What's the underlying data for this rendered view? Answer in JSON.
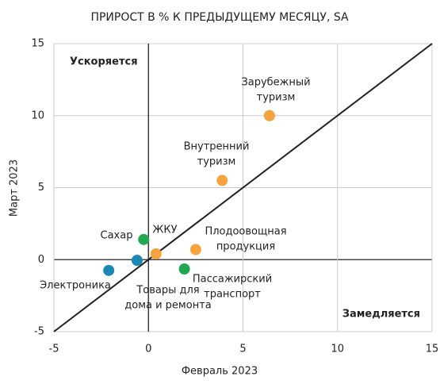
{
  "chart_data": {
    "type": "scatter",
    "title": "ПРИРОСТ В % К ПРЕДЫДУЩЕМУ МЕСЯЦУ, SA",
    "x_label": "Февраль 2023",
    "y_label": "Март 2023",
    "xlim": [
      -5,
      15
    ],
    "ylim": [
      -5,
      15
    ],
    "xticks": [
      -5,
      0,
      5,
      10,
      15
    ],
    "yticks": [
      -5,
      0,
      5,
      10,
      15
    ],
    "grid": true,
    "diagonal": true,
    "annotations": [
      "Ускоряется",
      "Замедляется"
    ],
    "points": [
      {
        "label": [
          "Зарубежный",
          "туризм"
        ],
        "x": 6.4,
        "y": 10.0,
        "color": "#f7a23b"
      },
      {
        "label": [
          "Внутренний",
          "туризм"
        ],
        "x": 3.9,
        "y": 5.5,
        "color": "#f7a23b"
      },
      {
        "label": [
          "Плодоовощная",
          "продукция"
        ],
        "x": 2.5,
        "y": 0.7,
        "color": "#f7a23b"
      },
      {
        "label": [
          "ЖКУ"
        ],
        "x": 0.4,
        "y": 0.4,
        "color": "#f7a23b"
      },
      {
        "label": [
          "Сахар"
        ],
        "x": -0.25,
        "y": 1.4,
        "color": "#1fa84f"
      },
      {
        "label": [
          "Пассажирский",
          "транспорт"
        ],
        "x": 1.9,
        "y": -0.65,
        "color": "#1fa84f"
      },
      {
        "label": [
          "Товары для",
          "дома и ремонта"
        ],
        "x": -0.6,
        "y": -0.05,
        "color": "#1b88b4"
      },
      {
        "label": [
          "Электроника"
        ],
        "x": -2.1,
        "y": -0.75,
        "color": "#1b88b4"
      }
    ]
  }
}
